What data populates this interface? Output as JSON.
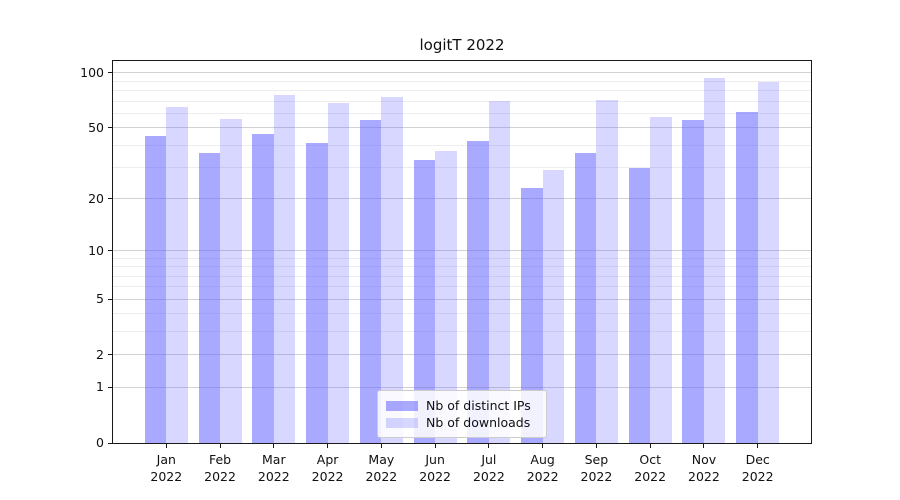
{
  "title": "logitT 2022",
  "colors": {
    "bar_base": "#6666ff",
    "bar_dark": "rgba(102,102,255,0.56)",
    "bar_light": "rgba(102,102,255,0.26)",
    "grid_major": "#d2d2d2",
    "grid_minor": "#ededed",
    "axis": "#1a1a1a",
    "legend_border": "#cccccc"
  },
  "legend": {
    "items": [
      {
        "label": "Nb of distinct IPs",
        "swatch": "rgba(102,102,255,0.56)"
      },
      {
        "label": "Nb of downloads",
        "swatch": "rgba(102,102,255,0.26)"
      }
    ]
  },
  "chart_data": {
    "type": "bar",
    "title": "logitT 2022",
    "categories": [
      "Jan 2022",
      "Feb 2022",
      "Mar 2022",
      "Apr 2022",
      "May 2022",
      "Jun 2022",
      "Jul 2022",
      "Aug 2022",
      "Sep 2022",
      "Oct 2022",
      "Nov 2022",
      "Dec 2022"
    ],
    "month_labels": [
      "Jan",
      "Feb",
      "Mar",
      "Apr",
      "May",
      "Jun",
      "Jul",
      "Aug",
      "Sep",
      "Oct",
      "Nov",
      "Dec"
    ],
    "year_label": "2022",
    "series": [
      {
        "name": "Nb of distinct IPs",
        "color": "rgba(102,102,255,0.56)",
        "values": [
          45,
          36,
          46,
          41,
          55,
          33,
          42,
          23,
          36,
          30,
          55,
          61
        ]
      },
      {
        "name": "Nb of downloads",
        "color": "rgba(102,102,255,0.26)",
        "values": [
          65,
          56,
          76,
          68,
          74,
          37,
          70,
          29,
          71,
          57,
          94,
          89
        ]
      }
    ],
    "yscale": "log1p",
    "ylim": [
      0,
      116
    ],
    "yticks": [
      0,
      1,
      2,
      5,
      10,
      20,
      50,
      100
    ],
    "yticks_minor": [
      3,
      4,
      6,
      7,
      8,
      9,
      30,
      40,
      60,
      70,
      80,
      90
    ],
    "grid": true,
    "legend_position": "inside-lower-center"
  }
}
